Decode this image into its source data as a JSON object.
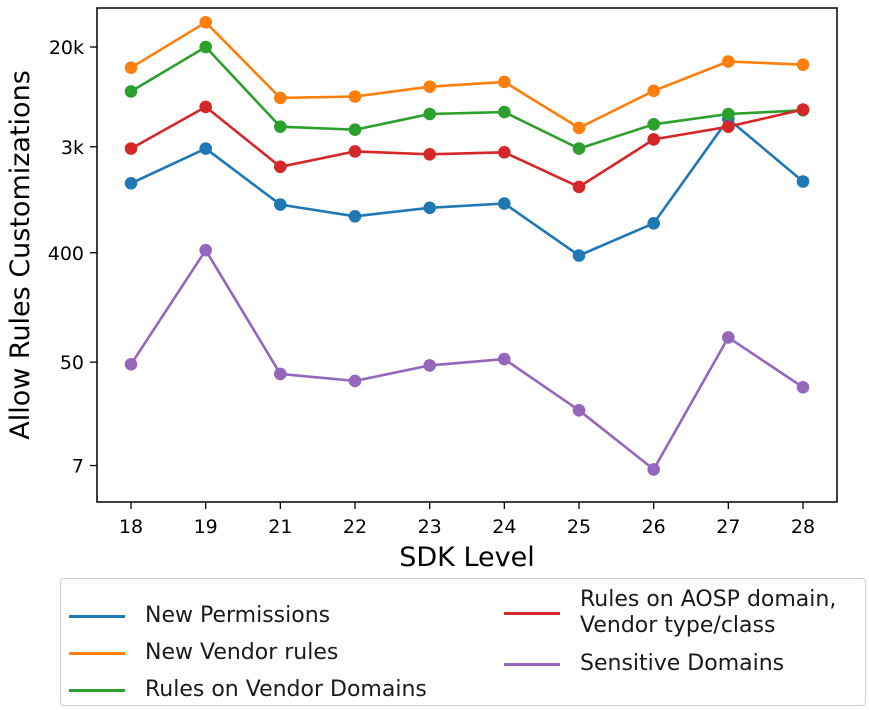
{
  "chart_data": {
    "type": "line",
    "xlabel": "SDK Level",
    "ylabel": "Allow Rules Customizations",
    "yscale": "log",
    "ylim": [
      3.5,
      42000
    ],
    "yticks": [
      7,
      50,
      400,
      3000,
      20000
    ],
    "ytick_labels": [
      "7",
      "50",
      "400",
      "3k",
      "20k"
    ],
    "categories": [
      "18",
      "19",
      "21",
      "22",
      "23",
      "24",
      "25",
      "26",
      "27",
      "28"
    ],
    "grid": false,
    "legend_position": "bottom",
    "series": [
      {
        "name": "New Permissions",
        "color": "#1f77b4",
        "values": [
          1500,
          2900,
          1000,
          800,
          940,
          1020,
          380,
          700,
          5100,
          1550
        ]
      },
      {
        "name": "New Vendor rules",
        "color": "#ff7f0e",
        "values": [
          13500,
          32000,
          7600,
          7800,
          9400,
          10300,
          4300,
          8700,
          15200,
          14300
        ]
      },
      {
        "name": "Rules on Vendor Domains",
        "color": "#2ca02c",
        "values": [
          8600,
          20000,
          4400,
          4150,
          5600,
          5800,
          2900,
          4600,
          5600,
          6000
        ]
      },
      {
        "name": "Rules on AOSP domain,\nVendor type/class",
        "color": "#d62728",
        "values": [
          2900,
          6400,
          2050,
          2750,
          2600,
          2700,
          1400,
          3450,
          4400,
          6100
        ]
      },
      {
        "name": "Sensitive Domains",
        "color": "#9467bd",
        "values": [
          48,
          420,
          40,
          35,
          47,
          53,
          20,
          6.5,
          80,
          31
        ]
      }
    ]
  }
}
